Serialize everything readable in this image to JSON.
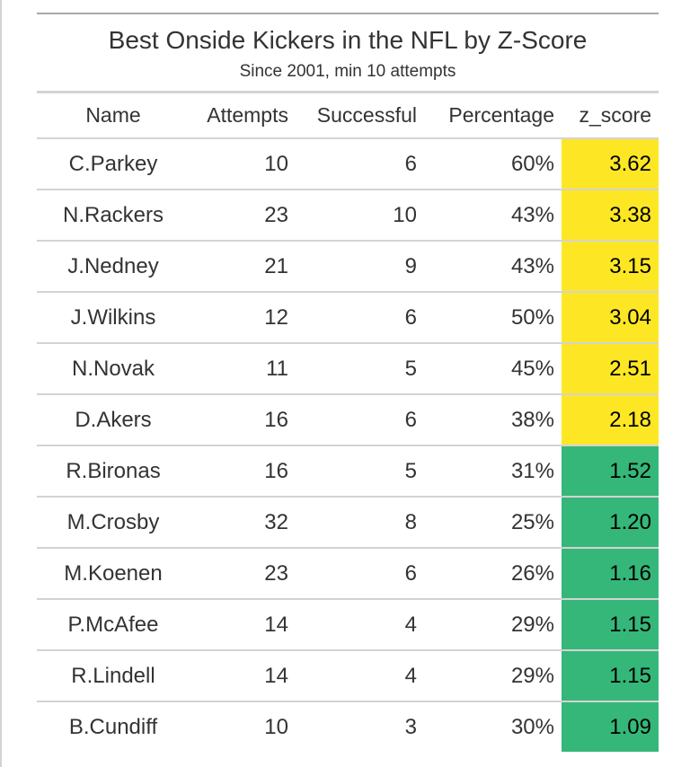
{
  "chart_data": {
    "type": "table",
    "title": "Best Onside Kickers in the NFL by Z-Score",
    "subtitle": "Since 2001, min 10 attempts",
    "columns": [
      "Name",
      "Attempts",
      "Successful",
      "Percentage",
      "z_score"
    ],
    "rows": [
      {
        "name": "C.Parkey",
        "attempts": 10,
        "successful": 6,
        "percentage": "60%",
        "z_score": "3.62"
      },
      {
        "name": "N.Rackers",
        "attempts": 23,
        "successful": 10,
        "percentage": "43%",
        "z_score": "3.38"
      },
      {
        "name": "J.Nedney",
        "attempts": 21,
        "successful": 9,
        "percentage": "43%",
        "z_score": "3.15"
      },
      {
        "name": "J.Wilkins",
        "attempts": 12,
        "successful": 6,
        "percentage": "50%",
        "z_score": "3.04"
      },
      {
        "name": "N.Novak",
        "attempts": 11,
        "successful": 5,
        "percentage": "45%",
        "z_score": "2.51"
      },
      {
        "name": "D.Akers",
        "attempts": 16,
        "successful": 6,
        "percentage": "38%",
        "z_score": "2.18"
      },
      {
        "name": "R.Bironas",
        "attempts": 16,
        "successful": 5,
        "percentage": "31%",
        "z_score": "1.52"
      },
      {
        "name": "M.Crosby",
        "attempts": 32,
        "successful": 8,
        "percentage": "25%",
        "z_score": "1.20"
      },
      {
        "name": "M.Koenen",
        "attempts": 23,
        "successful": 6,
        "percentage": "26%",
        "z_score": "1.16"
      },
      {
        "name": "P.McAfee",
        "attempts": 14,
        "successful": 4,
        "percentage": "29%",
        "z_score": "1.15"
      },
      {
        "name": "R.Lindell",
        "attempts": 14,
        "successful": 4,
        "percentage": "29%",
        "z_score": "1.15"
      },
      {
        "name": "B.Cundiff",
        "attempts": 10,
        "successful": 3,
        "percentage": "30%",
        "z_score": "1.09"
      }
    ],
    "z_score_colors": {
      "high": "#fde725",
      "mid": "#35b779"
    },
    "z_score_color_threshold": 2
  }
}
